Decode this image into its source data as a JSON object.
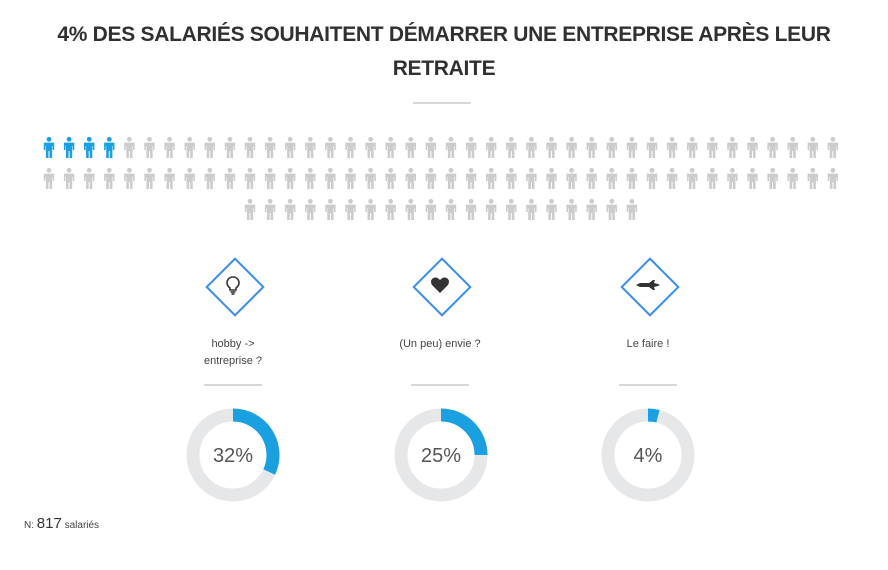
{
  "title_lines": [
    "4% DES SALARIÉS SOUHAITENT DÉMARRER UNE ENTREPRISE APRÈS LEUR",
    "RETRAITE"
  ],
  "colors": {
    "accent": "#1aa0e0",
    "icon_border": "#3a8ee6",
    "inactive": "#cccccc",
    "track": "#e6e7e8",
    "text": "#444444"
  },
  "chart_data": [
    {
      "type": "pictogram",
      "title": "4% DES SALARIÉS SOUHAITENT DÉMARRER UNE ENTREPRISE APRÈS LEUR RETRAITE",
      "total": 100,
      "highlighted": 4,
      "unit_icon": "person-icon"
    },
    {
      "type": "pie",
      "style": "donut",
      "categories": [
        "hobby -> entreprise ?",
        "(Un peu) envie ?",
        "Le faire !"
      ],
      "icons": [
        "lightbulb-icon",
        "heart-icon",
        "rocket-icon"
      ],
      "values": [
        32,
        25,
        4
      ],
      "labels": [
        "32%",
        "25%",
        "4%"
      ],
      "unit": "%"
    }
  ],
  "items": [
    {
      "icon": "lightbulb-icon",
      "label_lines": [
        "hobby ->",
        "entreprise ?"
      ],
      "value": 32,
      "value_label": "32%"
    },
    {
      "icon": "heart-icon",
      "label_lines": [
        "(Un peu) envie ?"
      ],
      "value": 25,
      "value_label": "25%"
    },
    {
      "icon": "rocket-icon",
      "label_lines": [
        "Le faire !"
      ],
      "value": 4,
      "value_label": "4%"
    }
  ],
  "footer": {
    "prefix": "N:",
    "count": "817",
    "suffix": "salariés"
  }
}
